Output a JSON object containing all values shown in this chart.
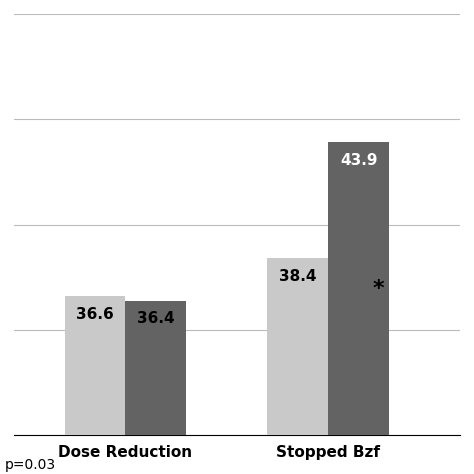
{
  "categories": [
    "Dose Reduction",
    "Stopped Bzf"
  ],
  "values_light": [
    36.6,
    38.4
  ],
  "values_dark": [
    36.4,
    43.9
  ],
  "color_light": "#c9c9c9",
  "color_dark": "#636363",
  "bar_width": 0.3,
  "ylim": [
    30,
    50
  ],
  "yticks": [
    30,
    35,
    40,
    45,
    50
  ],
  "label_fontsize": 11,
  "value_fontsize": 11,
  "pvalue_text": "p=0.03",
  "asterisk_text": "*",
  "background_color": "#ffffff"
}
